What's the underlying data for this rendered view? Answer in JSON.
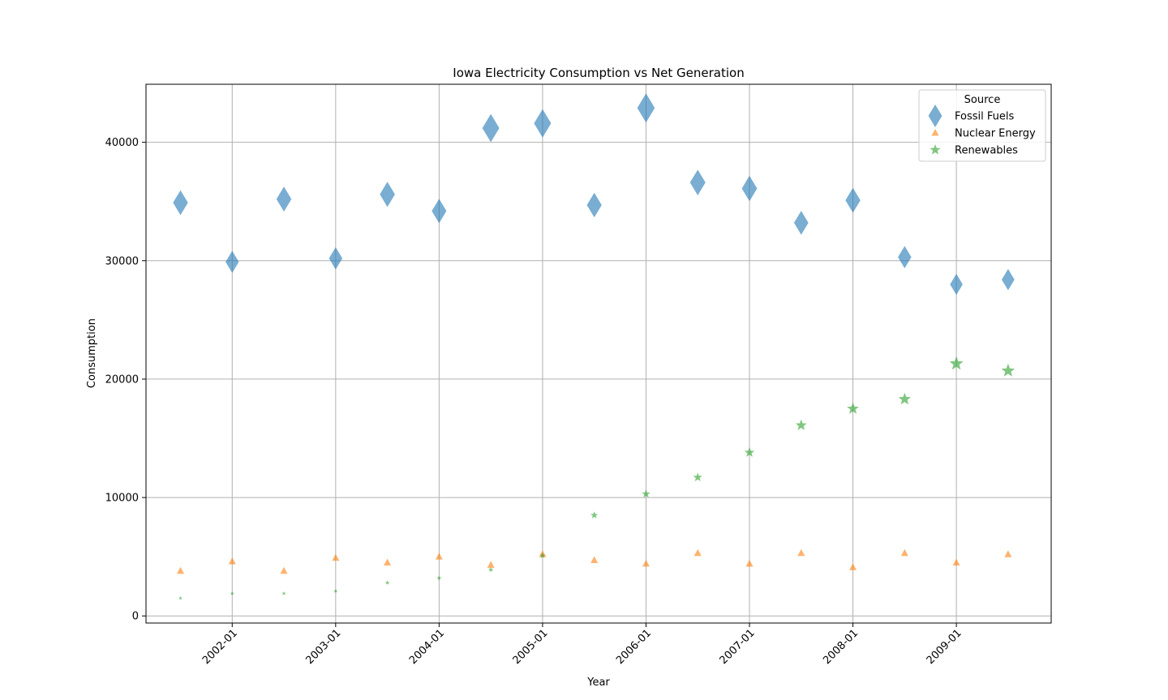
{
  "chart_data": {
    "type": "scatter",
    "title": "Iowa Electricity Consumption vs Net Generation",
    "xlabel": "Year",
    "ylabel": "Consumption",
    "x_tick_labels": [
      "2002-01",
      "2003-01",
      "2004-01",
      "2005-01",
      "2006-01",
      "2007-01",
      "2008-01",
      "2009-01"
    ],
    "y_ticks": [
      0,
      10000,
      20000,
      30000,
      40000
    ],
    "y_tick_labels": [
      "0",
      "10000",
      "20000",
      "30000",
      "40000"
    ],
    "ylim": [
      -600,
      44900
    ],
    "xlim": [
      "2001-03",
      "2009-12"
    ],
    "grid": true,
    "legend": {
      "title": "Source",
      "placement": "top-right"
    },
    "x": [
      "2001-07",
      "2002-01",
      "2002-07",
      "2003-01",
      "2003-07",
      "2004-01",
      "2004-07",
      "2005-01",
      "2005-07",
      "2006-01",
      "2006-07",
      "2007-01",
      "2007-07",
      "2008-01",
      "2008-07",
      "2009-01",
      "2009-07"
    ],
    "series": [
      {
        "name": "Fossil Fuels",
        "marker": "diamond",
        "color": "#1f77b4",
        "values": [
          34900,
          29900,
          35200,
          30200,
          35600,
          34200,
          41200,
          41600,
          34700,
          42900,
          36600,
          36100,
          33200,
          35100,
          30300,
          28000,
          28400
        ]
      },
      {
        "name": "Nuclear Energy",
        "marker": "triangle",
        "color": "#ff7f0e",
        "values": [
          3800,
          4600,
          3800,
          4900,
          4500,
          5000,
          4300,
          5200,
          4700,
          4400,
          5300,
          4400,
          5300,
          4100,
          5300,
          4500,
          5200
        ]
      },
      {
        "name": "Renewables",
        "marker": "star",
        "color": "#2ca02c",
        "values": [
          1500,
          1900,
          1900,
          2100,
          2800,
          3200,
          3900,
          5100,
          8500,
          10300,
          11700,
          13800,
          16100,
          17500,
          18300,
          21300,
          20700
        ]
      }
    ]
  }
}
